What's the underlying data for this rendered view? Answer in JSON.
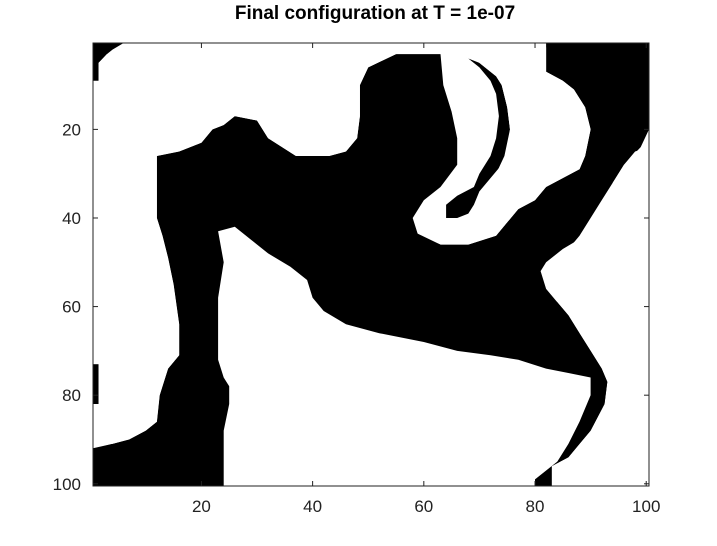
{
  "chart_data": {
    "type": "heatmap",
    "title": "Final configuration at T = 1e-07",
    "grid_size": [
      100,
      100
    ],
    "colormap": [
      "#ffffff",
      "#000000"
    ],
    "x_ticks": [
      20,
      40,
      60,
      80,
      100
    ],
    "y_ticks": [
      20,
      40,
      60,
      80,
      100
    ],
    "x_tick_labels": [
      "20",
      "40",
      "60",
      "80",
      "100"
    ],
    "y_tick_labels": [
      "20",
      "40",
      "60",
      "80",
      "100"
    ],
    "xlim": [
      0.5,
      100.5
    ],
    "ylim": [
      0.5,
      100.5
    ],
    "y_direction": "reverse",
    "grid": false,
    "black_regions": [
      {
        "points": [
          [
            0.5,
            0.5
          ],
          [
            6,
            0.5
          ],
          [
            4,
            2
          ],
          [
            3,
            3
          ],
          [
            1.5,
            5
          ],
          [
            1.5,
            9
          ],
          [
            0.5,
            9
          ]
        ]
      },
      {
        "points": [
          [
            0.5,
            73
          ],
          [
            1.5,
            73
          ],
          [
            1.5,
            82
          ],
          [
            0.5,
            82
          ]
        ]
      },
      {
        "points": [
          [
            63,
            3
          ],
          [
            66,
            3
          ],
          [
            68,
            4
          ],
          [
            70,
            6
          ],
          [
            72,
            9
          ],
          [
            73,
            12
          ],
          [
            73.5,
            17
          ],
          [
            73,
            22
          ],
          [
            72,
            26
          ],
          [
            70,
            30
          ],
          [
            69,
            33
          ],
          [
            66,
            35
          ],
          [
            64,
            37
          ],
          [
            64,
            40
          ],
          [
            66,
            40
          ],
          [
            68,
            39
          ],
          [
            69,
            37
          ],
          [
            70,
            34
          ],
          [
            72,
            31
          ],
          [
            74,
            28
          ],
          [
            75,
            25
          ],
          [
            75.5,
            20
          ],
          [
            75,
            15
          ],
          [
            74,
            10
          ],
          [
            73,
            8
          ],
          [
            71,
            6
          ],
          [
            70,
            5
          ],
          [
            66,
            3
          ],
          [
            63,
            3
          ]
        ]
      },
      {
        "points": [
          [
            63,
            3
          ],
          [
            55,
            3
          ],
          [
            50,
            6
          ],
          [
            48.5,
            10
          ],
          [
            48.5,
            17
          ],
          [
            48,
            22
          ],
          [
            46,
            25
          ],
          [
            43,
            26
          ],
          [
            37,
            26
          ],
          [
            32,
            22
          ],
          [
            30,
            18
          ],
          [
            26,
            17
          ],
          [
            24,
            19
          ],
          [
            22,
            20
          ],
          [
            20,
            23
          ],
          [
            16,
            25
          ],
          [
            12,
            26
          ],
          [
            12,
            40
          ],
          [
            13,
            44
          ],
          [
            14,
            49
          ],
          [
            15,
            55
          ],
          [
            16,
            64
          ],
          [
            16,
            71
          ],
          [
            14,
            74
          ],
          [
            12.5,
            80
          ],
          [
            12,
            86
          ],
          [
            10,
            88
          ],
          [
            7,
            90
          ],
          [
            4,
            91
          ],
          [
            1,
            92
          ],
          [
            0.5,
            92
          ],
          [
            0.5,
            100.5
          ],
          [
            83,
            100.5
          ],
          [
            83,
            96
          ],
          [
            86,
            94
          ],
          [
            88,
            91
          ],
          [
            90,
            88
          ],
          [
            92.5,
            82
          ],
          [
            93,
            77
          ],
          [
            92,
            74
          ],
          [
            90,
            70
          ],
          [
            88,
            66
          ],
          [
            86,
            62
          ],
          [
            84,
            59
          ],
          [
            82,
            56
          ],
          [
            81,
            52
          ],
          [
            82,
            50
          ],
          [
            85,
            47
          ],
          [
            89,
            44
          ],
          [
            91,
            40
          ],
          [
            93,
            36
          ],
          [
            94,
            32
          ],
          [
            96,
            28
          ],
          [
            99,
            24
          ],
          [
            100.5,
            20
          ],
          [
            100.5,
            0.5
          ],
          [
            82,
            0.5
          ],
          [
            82,
            7
          ],
          [
            85,
            9
          ],
          [
            87,
            11
          ],
          [
            89,
            15
          ],
          [
            90,
            20
          ],
          [
            89,
            26
          ],
          [
            88,
            29
          ],
          [
            85,
            31
          ],
          [
            82,
            33
          ],
          [
            80,
            36
          ],
          [
            77,
            38
          ],
          [
            75,
            41
          ],
          [
            73,
            44
          ],
          [
            68,
            46
          ],
          [
            63,
            46
          ],
          [
            59,
            44
          ],
          [
            58,
            40
          ],
          [
            60,
            36
          ],
          [
            63,
            33
          ],
          [
            66,
            28
          ],
          [
            66,
            22
          ],
          [
            65,
            16
          ],
          [
            63.5,
            10
          ],
          [
            63,
            3
          ]
        ]
      },
      {
        "points": [
          [
            12,
            26
          ],
          [
            16,
            25
          ],
          [
            20,
            23
          ],
          [
            24,
            20
          ],
          [
            28,
            18
          ],
          [
            32,
            22
          ],
          [
            37,
            26
          ],
          [
            43,
            26
          ],
          [
            46,
            25
          ],
          [
            48,
            22
          ],
          [
            50,
            26
          ],
          [
            52,
            32
          ],
          [
            55,
            38
          ],
          [
            58,
            43
          ],
          [
            63,
            46
          ],
          [
            68,
            46
          ],
          [
            73,
            44
          ],
          [
            77,
            38
          ],
          [
            80,
            36
          ],
          [
            82,
            33
          ],
          [
            85,
            31
          ],
          [
            88,
            29
          ],
          [
            89,
            32
          ],
          [
            88,
            36
          ],
          [
            86,
            40
          ],
          [
            84,
            44
          ],
          [
            82,
            47
          ],
          [
            80,
            52
          ],
          [
            81,
            56
          ],
          [
            84,
            59
          ],
          [
            86,
            62
          ],
          [
            88,
            66
          ],
          [
            90,
            70
          ],
          [
            92,
            74
          ],
          [
            93,
            77
          ],
          [
            92.5,
            82
          ],
          [
            90,
            88
          ],
          [
            88,
            91
          ],
          [
            86,
            94
          ],
          [
            83,
            96
          ],
          [
            83,
            100.5
          ],
          [
            80,
            100.5
          ],
          [
            80,
            99
          ],
          [
            84,
            95
          ],
          [
            86,
            91
          ],
          [
            88,
            86
          ],
          [
            90,
            80
          ],
          [
            90,
            76
          ],
          [
            86,
            75
          ],
          [
            82,
            74
          ],
          [
            77,
            72
          ],
          [
            72,
            71
          ],
          [
            66,
            70
          ],
          [
            60,
            68
          ],
          [
            52,
            66
          ],
          [
            46,
            64
          ],
          [
            42,
            61
          ],
          [
            40,
            58
          ],
          [
            39,
            54
          ],
          [
            36,
            51
          ],
          [
            32,
            48
          ],
          [
            29,
            45
          ],
          [
            26,
            42
          ],
          [
            24,
            43
          ],
          [
            24,
            50
          ],
          [
            23,
            58
          ],
          [
            23,
            66
          ],
          [
            23,
            72
          ],
          [
            24,
            76
          ],
          [
            25,
            78
          ],
          [
            24,
            84
          ],
          [
            23,
            88
          ],
          [
            22,
            92
          ],
          [
            17,
            93
          ],
          [
            14,
            94
          ],
          [
            10,
            96
          ],
          [
            7,
            98
          ],
          [
            4,
            100
          ],
          [
            0.5,
            100.5
          ],
          [
            0.5,
            92
          ],
          [
            4,
            91
          ],
          [
            7,
            90
          ],
          [
            10,
            88
          ],
          [
            12,
            86
          ],
          [
            12.5,
            80
          ],
          [
            14,
            74
          ],
          [
            16,
            71
          ],
          [
            16,
            64
          ],
          [
            15,
            55
          ],
          [
            14,
            49
          ],
          [
            13,
            44
          ],
          [
            12,
            40
          ]
        ]
      }
    ],
    "white_regions": [
      {
        "points": [
          [
            23,
            43
          ],
          [
            26,
            42
          ],
          [
            29,
            45
          ],
          [
            32,
            48
          ],
          [
            36,
            51
          ],
          [
            39,
            54
          ],
          [
            40,
            58
          ],
          [
            42,
            61
          ],
          [
            46,
            64
          ],
          [
            52,
            66
          ],
          [
            60,
            68
          ],
          [
            66,
            70
          ],
          [
            72,
            71
          ],
          [
            77,
            72
          ],
          [
            82,
            74
          ],
          [
            86,
            75
          ],
          [
            90,
            76
          ],
          [
            90,
            80
          ],
          [
            88,
            86
          ],
          [
            86,
            91
          ],
          [
            84,
            95
          ],
          [
            80,
            99
          ],
          [
            80,
            100.5
          ],
          [
            24,
            100.5
          ],
          [
            24,
            96
          ],
          [
            24,
            88
          ],
          [
            25,
            82
          ],
          [
            25,
            78
          ],
          [
            24,
            76
          ],
          [
            23,
            72
          ],
          [
            23,
            66
          ],
          [
            23,
            58
          ],
          [
            24,
            50
          ]
        ]
      },
      {
        "points": [
          [
            3,
            3
          ],
          [
            6,
            2
          ],
          [
            10,
            1.5
          ],
          [
            63,
            1.5
          ],
          [
            55,
            3
          ],
          [
            50,
            6
          ],
          [
            48.5,
            10
          ],
          [
            48.5,
            17
          ],
          [
            48,
            22
          ],
          [
            46,
            25
          ],
          [
            43,
            26
          ],
          [
            37,
            26
          ],
          [
            32,
            22
          ],
          [
            30,
            18
          ],
          [
            26,
            17
          ],
          [
            24,
            19
          ],
          [
            22,
            20
          ],
          [
            20,
            23
          ],
          [
            16,
            25
          ],
          [
            12,
            26
          ],
          [
            12,
            40
          ],
          [
            13,
            44
          ],
          [
            14,
            49
          ],
          [
            15,
            55
          ],
          [
            16,
            64
          ],
          [
            16,
            71
          ],
          [
            14,
            74
          ],
          [
            12.5,
            80
          ],
          [
            12,
            86
          ],
          [
            10,
            88
          ],
          [
            7,
            90
          ],
          [
            4,
            91
          ],
          [
            1.5,
            91
          ],
          [
            1.5,
            82
          ],
          [
            1.5,
            73
          ],
          [
            1.5,
            9
          ],
          [
            1.5,
            5
          ]
        ]
      },
      {
        "points": [
          [
            66,
            1.5
          ],
          [
            82,
            1.5
          ],
          [
            82,
            7
          ],
          [
            85,
            9
          ],
          [
            87,
            11
          ],
          [
            89,
            15
          ],
          [
            90,
            20
          ],
          [
            89,
            26
          ],
          [
            88,
            29
          ],
          [
            85,
            31
          ],
          [
            82,
            33
          ],
          [
            80,
            36
          ],
          [
            77,
            38
          ],
          [
            75,
            41
          ],
          [
            73,
            44
          ],
          [
            68,
            46
          ],
          [
            63,
            46
          ],
          [
            63.5,
            44
          ],
          [
            66,
            42
          ],
          [
            69,
            40
          ],
          [
            71,
            37
          ],
          [
            72,
            34
          ],
          [
            73,
            30
          ],
          [
            74.5,
            26
          ],
          [
            75.5,
            20
          ],
          [
            75,
            15
          ],
          [
            74,
            10
          ],
          [
            73,
            8
          ],
          [
            71,
            6
          ],
          [
            70,
            5
          ]
        ]
      },
      {
        "points": [
          [
            100.5,
            24
          ],
          [
            100.5,
            75
          ],
          [
            98,
            73
          ],
          [
            95,
            70
          ],
          [
            92,
            66
          ],
          [
            89,
            62
          ],
          [
            86,
            58
          ],
          [
            84,
            56
          ],
          [
            83,
            53
          ],
          [
            84,
            50
          ],
          [
            86,
            47
          ],
          [
            88,
            44
          ],
          [
            90,
            40
          ],
          [
            92,
            36
          ],
          [
            94,
            32
          ],
          [
            96,
            28
          ],
          [
            98,
            25
          ]
        ]
      }
    ]
  }
}
